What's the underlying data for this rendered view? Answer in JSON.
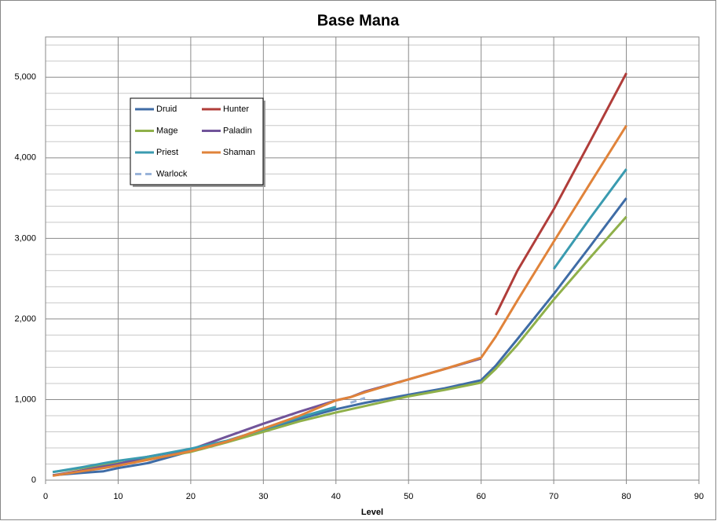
{
  "chart_data": {
    "type": "line",
    "title": "Base Mana",
    "x_label": "Level",
    "x": [
      1,
      5,
      8,
      10,
      14,
      20,
      25,
      30,
      35,
      40,
      42,
      44,
      50,
      55,
      60,
      62,
      65,
      70,
      75,
      80
    ],
    "series": [
      {
        "name": "Druid",
        "color": "#3f6ca6",
        "values": [
          60,
          90,
          110,
          150,
          210,
          360,
          480,
          620,
          760,
          880,
          920,
          960,
          1060,
          1140,
          1240,
          1420,
          1750,
          2310,
          2900,
          3500
        ]
      },
      {
        "name": "Hunter",
        "color": "#b03d3a",
        "values": [
          null,
          null,
          null,
          null,
          null,
          null,
          null,
          null,
          null,
          null,
          null,
          null,
          null,
          null,
          null,
          2050,
          2600,
          3360,
          4200,
          5050
        ]
      },
      {
        "name": "Mage",
        "color": "#8fb04a",
        "values": [
          100,
          150,
          190,
          210,
          260,
          350,
          470,
          600,
          730,
          840,
          880,
          920,
          1040,
          1120,
          1210,
          1380,
          1680,
          2240,
          2760,
          3270
        ]
      },
      {
        "name": "Paladin",
        "color": "#71549a",
        "values": [
          60,
          120,
          170,
          200,
          290,
          380,
          540,
          700,
          850,
          990,
          1030,
          1100,
          1250,
          1380,
          1510,
          null,
          null,
          null,
          null,
          null
        ]
      },
      {
        "name": "Priest",
        "color": "#3a9bb0",
        "values": [
          100,
          160,
          210,
          240,
          290,
          390,
          490,
          630,
          780,
          910,
          null,
          null,
          null,
          null,
          null,
          null,
          null,
          2620,
          3250,
          3860
        ]
      },
      {
        "name": "Shaman",
        "color": "#e0833a",
        "values": [
          55,
          110,
          150,
          180,
          250,
          360,
          480,
          640,
          800,
          990,
          1030,
          1090,
          1250,
          1380,
          1520,
          1780,
          2230,
          2960,
          3680,
          4400
        ]
      },
      {
        "name": "Warlock",
        "color": "#99b3d9",
        "dashed": true,
        "values": [
          null,
          null,
          null,
          null,
          null,
          null,
          null,
          null,
          null,
          null,
          960,
          1020,
          null,
          null,
          null,
          null,
          null,
          null,
          null,
          null
        ]
      }
    ],
    "xlim": [
      0,
      90
    ],
    "xticks": [
      0,
      10,
      20,
      30,
      40,
      50,
      60,
      70,
      80,
      90
    ],
    "ylim": [
      0,
      5500
    ],
    "yticks": [
      0,
      {
        "value": 1000,
        "label": "1,000"
      },
      {
        "value": 2000,
        "label": "2,000"
      },
      {
        "value": 3000,
        "label": "3,000"
      },
      {
        "value": 4000,
        "label": "4,000"
      },
      {
        "value": 5000,
        "label": "5,000"
      }
    ],
    "y_grid": [
      200,
      400,
      600,
      800,
      1200,
      1400,
      1600,
      1800,
      2200,
      2400,
      2600,
      2800,
      3200,
      3400,
      3600,
      3800,
      4200,
      4400,
      4600,
      4800,
      5200,
      5400
    ],
    "grid": true,
    "legend": "upper-left"
  }
}
